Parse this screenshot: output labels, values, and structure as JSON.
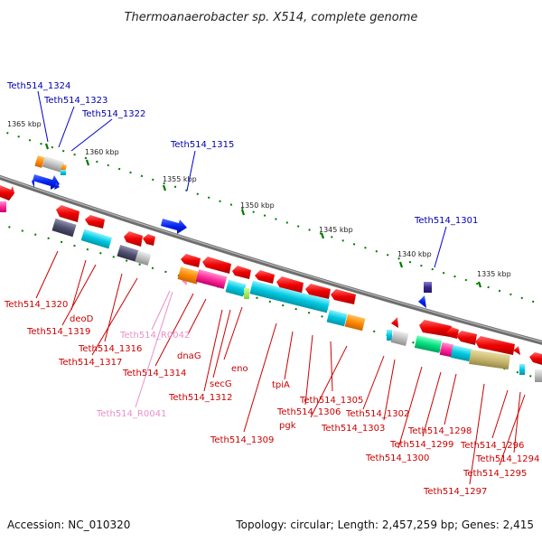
{
  "title": "Thermoanaerobacter sp. X514, complete genome",
  "footer": {
    "accession": "Accession: NC_010320",
    "summary": "Topology: circular; Length: 2,457,259 bp; Genes: 2,415"
  },
  "ticks": [
    "1365 kbp",
    "1360 kbp",
    "1355 kbp",
    "1350 kbp",
    "1345 kbp",
    "1340 kbp",
    "1335 kbp"
  ],
  "labels": {
    "teth1324": "Teth514_1324",
    "teth1323": "Teth514_1323",
    "teth1322": "Teth514_1322",
    "teth1315": "Teth514_1315",
    "teth1301": "Teth514_1301",
    "teth1320": "Teth514_1320",
    "deoD": "deoD",
    "teth1319": "Teth514_1319",
    "tethR0042": "Teth514_R0042",
    "teth1316": "Teth514_1316",
    "teth1317": "Teth514_1317",
    "dnaG": "dnaG",
    "teth1314": "Teth514_1314",
    "eno": "eno",
    "secG": "secG",
    "teth1312": "Teth514_1312",
    "tethR0041": "Teth514_R0041",
    "tpiA": "tpiA",
    "teth1305": "Teth514_1305",
    "teth1306": "Teth514_1306",
    "teth1302": "Teth514_1302",
    "pgk": "pgk",
    "teth1303": "Teth514_1303",
    "teth1298": "Teth514_1298",
    "teth1309": "Teth514_1309",
    "teth1299": "Teth514_1299",
    "teth1296": "Teth514_1296",
    "teth1300": "Teth514_1300",
    "teth1294": "Teth514_1294",
    "teth1295": "Teth514_1295",
    "teth1297": "Teth514_1297"
  },
  "colors": {
    "backbone": "#7a7a7a",
    "forward_gene": "#ee0000",
    "reverse_gene": "#0022ee",
    "dot_track": "#007a00",
    "label_blue": "#0000aa",
    "label_red": "#cc0000",
    "label_pink": "#e890c8"
  }
}
